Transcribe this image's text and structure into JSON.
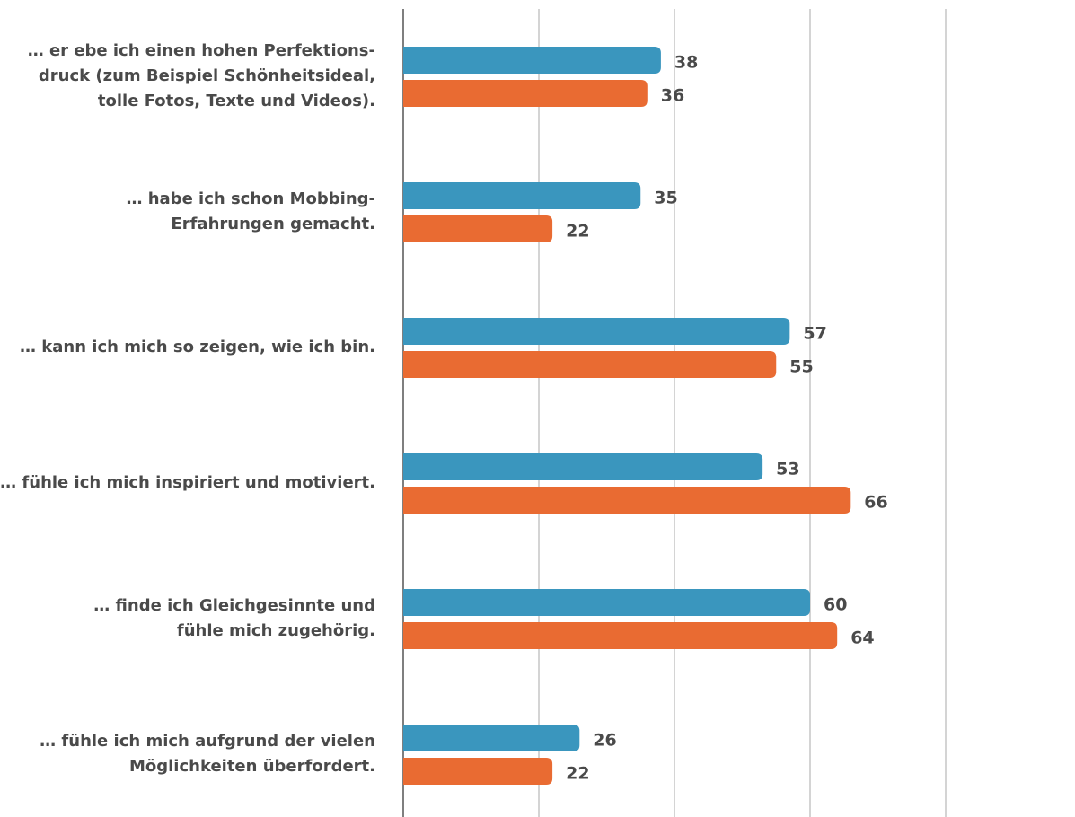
{
  "chart_data": {
    "type": "bar",
    "orientation": "horizontal",
    "categories": [
      "… er ebe ich einen hohen Perfektions-\ndruck (zum Beispiel Schönheitsideal,\ntolle Fotos, Texte und Videos).",
      "… habe ich schon Mobbing-\nErfahrungen gemacht.",
      "… kann ich mich so zeigen, wie ich bin.",
      "… fühle ich mich inspiriert und motiviert.",
      "… finde ich Gleichgesinnte und\nfühle mich zugehörig.",
      "… fühle ich mich aufgrund der vielen\nMöglichkeiten überfordert."
    ],
    "series": [
      {
        "color": "#3a96be",
        "values": [
          38,
          35,
          57,
          53,
          60,
          26
        ]
      },
      {
        "color": "#e96b32",
        "values": [
          36,
          22,
          55,
          66,
          64,
          22
        ]
      }
    ],
    "xlim": [
      0,
      80
    ],
    "xticks": [
      0,
      20,
      40,
      60,
      80
    ],
    "grid": true
  }
}
